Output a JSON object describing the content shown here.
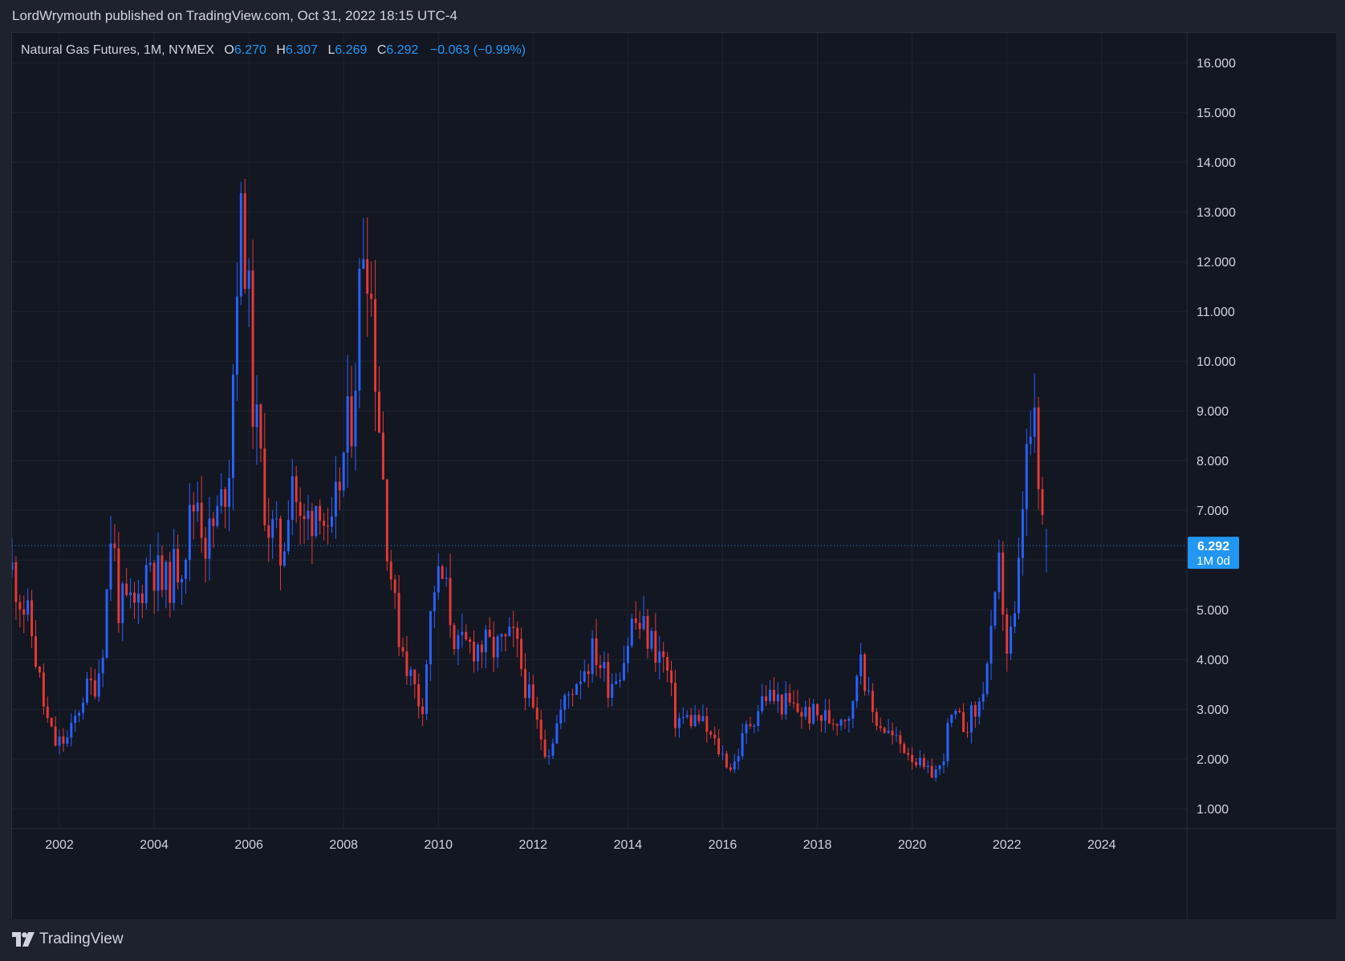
{
  "header": {
    "published": "LordWrymouth published on TradingView.com, Oct 31, 2022 18:15 UTC-4"
  },
  "legend": {
    "symbol": "Natural Gas Futures, 1M, NYMEX",
    "open_label": "O",
    "open": "6.270",
    "high_label": "H",
    "high": "6.307",
    "low_label": "L",
    "low": "6.269",
    "close_label": "C",
    "close": "6.292",
    "change": "−0.063 (−0.99%)"
  },
  "footer": {
    "brand": "TradingView"
  },
  "colors": {
    "background": "#131722",
    "grid": "#1f2330",
    "up": "#2962ff",
    "down": "#e53935",
    "price_tag": "#2196f3",
    "text": "#d1d4dc"
  },
  "chart_data": {
    "type": "candlestick",
    "title": "Natural Gas Futures, 1M, NYMEX",
    "interval": "1M",
    "ylim": [
      0.6,
      16.6
    ],
    "xlim": [
      2001.0,
      2025.8
    ],
    "y_ticks": [
      "1.000",
      "2.000",
      "3.000",
      "4.000",
      "5.000",
      "6.000",
      "7.000",
      "8.000",
      "9.000",
      "10.000",
      "11.000",
      "12.000",
      "13.000",
      "14.000",
      "15.000",
      "16.000"
    ],
    "x_ticks": [
      "2002",
      "2004",
      "2006",
      "2008",
      "2010",
      "2012",
      "2014",
      "2016",
      "2018",
      "2020",
      "2022",
      "2024"
    ],
    "last_price": "6.292",
    "last_price_sub": "1M 0d",
    "anchors": [
      [
        2001.0,
        5.8
      ],
      [
        2001.4,
        4.6
      ],
      [
        2001.7,
        2.9
      ],
      [
        2001.9,
        2.3
      ],
      [
        2002.2,
        2.4
      ],
      [
        2002.5,
        3.3
      ],
      [
        2002.8,
        3.6
      ],
      [
        2002.95,
        4.6
      ],
      [
        2003.1,
        6.8
      ],
      [
        2003.25,
        5.1
      ],
      [
        2003.6,
        5.0
      ],
      [
        2003.9,
        6.1
      ],
      [
        2004.2,
        5.4
      ],
      [
        2004.6,
        6.1
      ],
      [
        2004.9,
        7.4
      ],
      [
        2005.1,
        6.3
      ],
      [
        2005.4,
        7.0
      ],
      [
        2005.6,
        8.2
      ],
      [
        2005.75,
        12.0
      ],
      [
        2005.9,
        12.8
      ],
      [
        2006.1,
        9.0
      ],
      [
        2006.4,
        6.8
      ],
      [
        2006.7,
        6.0
      ],
      [
        2006.9,
        8.0
      ],
      [
        2007.1,
        6.5
      ],
      [
        2007.5,
        7.4
      ],
      [
        2007.7,
        6.0
      ],
      [
        2007.9,
        7.5
      ],
      [
        2008.2,
        9.2
      ],
      [
        2008.45,
        13.2
      ],
      [
        2008.6,
        11.0
      ],
      [
        2008.9,
        6.7
      ],
      [
        2009.1,
        4.8
      ],
      [
        2009.4,
        3.7
      ],
      [
        2009.65,
        3.0
      ],
      [
        2009.9,
        5.5
      ],
      [
        2010.1,
        5.6
      ],
      [
        2010.4,
        4.2
      ],
      [
        2010.8,
        4.3
      ],
      [
        2011.2,
        4.2
      ],
      [
        2011.6,
        4.4
      ],
      [
        2012.0,
        2.9
      ],
      [
        2012.3,
        2.1
      ],
      [
        2012.6,
        3.0
      ],
      [
        2012.9,
        3.6
      ],
      [
        2013.3,
        4.2
      ],
      [
        2013.6,
        3.5
      ],
      [
        2013.9,
        4.0
      ],
      [
        2014.1,
        4.8
      ],
      [
        2014.4,
        4.5
      ],
      [
        2014.8,
        3.9
      ],
      [
        2015.0,
        2.8
      ],
      [
        2015.5,
        2.8
      ],
      [
        2015.9,
        2.2
      ],
      [
        2016.2,
        1.8
      ],
      [
        2016.5,
        2.6
      ],
      [
        2016.9,
        3.3
      ],
      [
        2017.3,
        3.1
      ],
      [
        2017.8,
        2.9
      ],
      [
        2018.3,
        2.8
      ],
      [
        2018.75,
        3.0
      ],
      [
        2018.9,
        4.4
      ],
      [
        2019.1,
        3.0
      ],
      [
        2019.6,
        2.4
      ],
      [
        2019.9,
        2.2
      ],
      [
        2020.3,
        1.7
      ],
      [
        2020.6,
        1.8
      ],
      [
        2020.8,
        2.8
      ],
      [
        2021.1,
        2.7
      ],
      [
        2021.4,
        3.0
      ],
      [
        2021.7,
        4.5
      ],
      [
        2021.85,
        5.9
      ],
      [
        2022.0,
        4.2
      ],
      [
        2022.2,
        4.8
      ],
      [
        2022.35,
        7.5
      ],
      [
        2022.55,
        8.8
      ],
      [
        2022.7,
        7.0
      ],
      [
        2022.83,
        6.29
      ]
    ]
  }
}
